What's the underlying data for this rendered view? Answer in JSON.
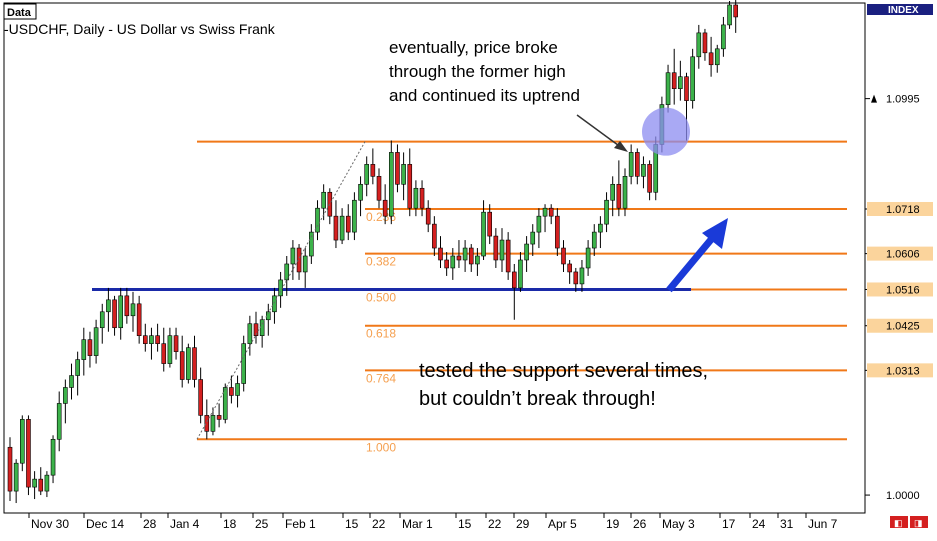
{
  "window": {
    "corner_label": "Data",
    "title": "-USDCHF, Daily - US Dollar vs Swiss Frank",
    "index_label": "INDEX"
  },
  "colors": {
    "bull_candle": "#3cb24a",
    "bear_candle": "#d42020",
    "wick": "#000000",
    "fib_line": "#f07818",
    "fib_text": "#f5a050",
    "support_line": "#1a2aa8",
    "arrow": "#1a3ad8",
    "circle": "#8c8cf0",
    "price_label_bg": "#fbd49c"
  },
  "annotations": {
    "breakout_line1": "eventually, price broke",
    "breakout_line2": "through the former high",
    "breakout_line3": "and continued its uptrend",
    "support_line1": "tested the support several times,",
    "support_line2": "but couldn’t break through!"
  },
  "chart_data": {
    "type": "candlestick",
    "title": "-USDCHF, Daily - US Dollar vs Swiss Frank",
    "ylim": [
      0.9955,
      1.1235
    ],
    "x_tick_labels": [
      "Nov 30",
      "Dec 14",
      "28",
      "Jan 4",
      "18",
      "25",
      "Feb 1",
      "15",
      "22",
      "Mar 1",
      "15",
      "22",
      "29",
      "Apr 5",
      "19",
      "26",
      "May 3",
      "17",
      "24",
      "31",
      "Jun 7"
    ],
    "y_labels": [
      {
        "value": 1.0995,
        "text": "1.0995",
        "highlight": false,
        "arrow": true
      },
      {
        "value": 1.0718,
        "text": "1.0718",
        "highlight": true
      },
      {
        "value": 1.0606,
        "text": "1.0606",
        "highlight": true
      },
      {
        "value": 1.0516,
        "text": "1.0516",
        "highlight": true
      },
      {
        "value": 1.0425,
        "text": "1.0425",
        "highlight": true
      },
      {
        "value": 1.0313,
        "text": "1.0313",
        "highlight": true
      },
      {
        "value": 1.0,
        "text": "1.0000",
        "highlight": false
      }
    ],
    "fibonacci": [
      {
        "level": "",
        "value": 1.0887
      },
      {
        "level": "0.236",
        "value": 1.0718
      },
      {
        "level": "0.382",
        "value": 1.0606
      },
      {
        "level": "0.500",
        "value": 1.0516
      },
      {
        "level": "0.618",
        "value": 1.0425
      },
      {
        "level": "0.764",
        "value": 1.0313
      },
      {
        "level": "1.000",
        "value": 1.014
      }
    ],
    "support_value": 1.0516,
    "candles": [
      {
        "o": 1.012,
        "h": 1.0145,
        "l": 0.9985,
        "c": 1.001
      },
      {
        "o": 1.001,
        "h": 1.009,
        "l": 0.998,
        "c": 1.008
      },
      {
        "o": 1.008,
        "h": 1.02,
        "l": 1.006,
        "c": 1.019
      },
      {
        "o": 1.019,
        "h": 1.02,
        "l": 1.0,
        "c": 1.002
      },
      {
        "o": 1.002,
        "h": 1.006,
        "l": 0.999,
        "c": 1.004
      },
      {
        "o": 1.004,
        "h": 1.007,
        "l": 1.0,
        "c": 1.001
      },
      {
        "o": 1.001,
        "h": 1.006,
        "l": 0.9995,
        "c": 1.005
      },
      {
        "o": 1.005,
        "h": 1.015,
        "l": 1.003,
        "c": 1.014
      },
      {
        "o": 1.014,
        "h": 1.026,
        "l": 1.011,
        "c": 1.023
      },
      {
        "o": 1.023,
        "h": 1.029,
        "l": 1.018,
        "c": 1.027
      },
      {
        "o": 1.027,
        "h": 1.033,
        "l": 1.024,
        "c": 1.03
      },
      {
        "o": 1.03,
        "h": 1.036,
        "l": 1.025,
        "c": 1.034
      },
      {
        "o": 1.034,
        "h": 1.042,
        "l": 1.03,
        "c": 1.039
      },
      {
        "o": 1.039,
        "h": 1.041,
        "l": 1.032,
        "c": 1.035
      },
      {
        "o": 1.035,
        "h": 1.044,
        "l": 1.033,
        "c": 1.042
      },
      {
        "o": 1.042,
        "h": 1.048,
        "l": 1.038,
        "c": 1.046
      },
      {
        "o": 1.046,
        "h": 1.052,
        "l": 1.041,
        "c": 1.049
      },
      {
        "o": 1.049,
        "h": 1.05,
        "l": 1.04,
        "c": 1.042
      },
      {
        "o": 1.042,
        "h": 1.052,
        "l": 1.039,
        "c": 1.05
      },
      {
        "o": 1.05,
        "h": 1.052,
        "l": 1.043,
        "c": 1.045
      },
      {
        "o": 1.045,
        "h": 1.051,
        "l": 1.041,
        "c": 1.048
      },
      {
        "o": 1.048,
        "h": 1.05,
        "l": 1.038,
        "c": 1.04
      },
      {
        "o": 1.04,
        "h": 1.043,
        "l": 1.036,
        "c": 1.038
      },
      {
        "o": 1.038,
        "h": 1.042,
        "l": 1.034,
        "c": 1.04
      },
      {
        "o": 1.04,
        "h": 1.043,
        "l": 1.036,
        "c": 1.038
      },
      {
        "o": 1.038,
        "h": 1.042,
        "l": 1.031,
        "c": 1.033
      },
      {
        "o": 1.033,
        "h": 1.042,
        "l": 1.032,
        "c": 1.04
      },
      {
        "o": 1.04,
        "h": 1.042,
        "l": 1.034,
        "c": 1.036
      },
      {
        "o": 1.036,
        "h": 1.04,
        "l": 1.027,
        "c": 1.029
      },
      {
        "o": 1.029,
        "h": 1.038,
        "l": 1.028,
        "c": 1.037
      },
      {
        "o": 1.037,
        "h": 1.04,
        "l": 1.027,
        "c": 1.029
      },
      {
        "o": 1.029,
        "h": 1.032,
        "l": 1.018,
        "c": 1.02
      },
      {
        "o": 1.02,
        "h": 1.024,
        "l": 1.014,
        "c": 1.016
      },
      {
        "o": 1.016,
        "h": 1.022,
        "l": 1.015,
        "c": 1.02
      },
      {
        "o": 1.02,
        "h": 1.023,
        "l": 1.017,
        "c": 1.019
      },
      {
        "o": 1.019,
        "h": 1.028,
        "l": 1.018,
        "c": 1.027
      },
      {
        "o": 1.027,
        "h": 1.03,
        "l": 1.023,
        "c": 1.025
      },
      {
        "o": 1.025,
        "h": 1.03,
        "l": 1.022,
        "c": 1.028
      },
      {
        "o": 1.028,
        "h": 1.04,
        "l": 1.026,
        "c": 1.038
      },
      {
        "o": 1.038,
        "h": 1.045,
        "l": 1.035,
        "c": 1.043
      },
      {
        "o": 1.043,
        "h": 1.046,
        "l": 1.038,
        "c": 1.04
      },
      {
        "o": 1.04,
        "h": 1.045,
        "l": 1.037,
        "c": 1.044
      },
      {
        "o": 1.044,
        "h": 1.048,
        "l": 1.04,
        "c": 1.046
      },
      {
        "o": 1.046,
        "h": 1.052,
        "l": 1.043,
        "c": 1.05
      },
      {
        "o": 1.05,
        "h": 1.056,
        "l": 1.047,
        "c": 1.054
      },
      {
        "o": 1.054,
        "h": 1.06,
        "l": 1.05,
        "c": 1.058
      },
      {
        "o": 1.058,
        "h": 1.064,
        "l": 1.054,
        "c": 1.062
      },
      {
        "o": 1.062,
        "h": 1.063,
        "l": 1.054,
        "c": 1.056
      },
      {
        "o": 1.056,
        "h": 1.062,
        "l": 1.052,
        "c": 1.06
      },
      {
        "o": 1.06,
        "h": 1.068,
        "l": 1.058,
        "c": 1.066
      },
      {
        "o": 1.066,
        "h": 1.074,
        "l": 1.064,
        "c": 1.072
      },
      {
        "o": 1.072,
        "h": 1.078,
        "l": 1.069,
        "c": 1.076
      },
      {
        "o": 1.076,
        "h": 1.077,
        "l": 1.068,
        "c": 1.07
      },
      {
        "o": 1.07,
        "h": 1.074,
        "l": 1.062,
        "c": 1.064
      },
      {
        "o": 1.064,
        "h": 1.072,
        "l": 1.063,
        "c": 1.07
      },
      {
        "o": 1.07,
        "h": 1.073,
        "l": 1.064,
        "c": 1.066
      },
      {
        "o": 1.066,
        "h": 1.076,
        "l": 1.064,
        "c": 1.074
      },
      {
        "o": 1.074,
        "h": 1.08,
        "l": 1.07,
        "c": 1.078
      },
      {
        "o": 1.078,
        "h": 1.085,
        "l": 1.075,
        "c": 1.083
      },
      {
        "o": 1.083,
        "h": 1.087,
        "l": 1.078,
        "c": 1.08
      },
      {
        "o": 1.08,
        "h": 1.082,
        "l": 1.072,
        "c": 1.074
      },
      {
        "o": 1.074,
        "h": 1.078,
        "l": 1.068,
        "c": 1.07
      },
      {
        "o": 1.07,
        "h": 1.089,
        "l": 1.068,
        "c": 1.086
      },
      {
        "o": 1.086,
        "h": 1.088,
        "l": 1.076,
        "c": 1.078
      },
      {
        "o": 1.078,
        "h": 1.086,
        "l": 1.074,
        "c": 1.083
      },
      {
        "o": 1.083,
        "h": 1.087,
        "l": 1.07,
        "c": 1.072
      },
      {
        "o": 1.072,
        "h": 1.079,
        "l": 1.07,
        "c": 1.077
      },
      {
        "o": 1.077,
        "h": 1.079,
        "l": 1.07,
        "c": 1.072
      },
      {
        "o": 1.072,
        "h": 1.074,
        "l": 1.066,
        "c": 1.068
      },
      {
        "o": 1.068,
        "h": 1.07,
        "l": 1.06,
        "c": 1.062
      },
      {
        "o": 1.062,
        "h": 1.065,
        "l": 1.057,
        "c": 1.059
      },
      {
        "o": 1.059,
        "h": 1.061,
        "l": 1.055,
        "c": 1.057
      },
      {
        "o": 1.057,
        "h": 1.062,
        "l": 1.054,
        "c": 1.06
      },
      {
        "o": 1.06,
        "h": 1.064,
        "l": 1.057,
        "c": 1.059
      },
      {
        "o": 1.059,
        "h": 1.064,
        "l": 1.056,
        "c": 1.062
      },
      {
        "o": 1.062,
        "h": 1.063,
        "l": 1.056,
        "c": 1.058
      },
      {
        "o": 1.058,
        "h": 1.062,
        "l": 1.055,
        "c": 1.06
      },
      {
        "o": 1.06,
        "h": 1.074,
        "l": 1.059,
        "c": 1.071
      },
      {
        "o": 1.071,
        "h": 1.073,
        "l": 1.063,
        "c": 1.065
      },
      {
        "o": 1.065,
        "h": 1.067,
        "l": 1.057,
        "c": 1.059
      },
      {
        "o": 1.059,
        "h": 1.067,
        "l": 1.056,
        "c": 1.064
      },
      {
        "o": 1.064,
        "h": 1.066,
        "l": 1.054,
        "c": 1.056
      },
      {
        "o": 1.056,
        "h": 1.058,
        "l": 1.044,
        "c": 1.052
      },
      {
        "o": 1.052,
        "h": 1.061,
        "l": 1.051,
        "c": 1.059
      },
      {
        "o": 1.059,
        "h": 1.065,
        "l": 1.056,
        "c": 1.063
      },
      {
        "o": 1.063,
        "h": 1.068,
        "l": 1.06,
        "c": 1.066
      },
      {
        "o": 1.066,
        "h": 1.072,
        "l": 1.062,
        "c": 1.07
      },
      {
        "o": 1.07,
        "h": 1.073,
        "l": 1.066,
        "c": 1.072
      },
      {
        "o": 1.072,
        "h": 1.073,
        "l": 1.068,
        "c": 1.07
      },
      {
        "o": 1.07,
        "h": 1.072,
        "l": 1.06,
        "c": 1.062
      },
      {
        "o": 1.062,
        "h": 1.064,
        "l": 1.056,
        "c": 1.058
      },
      {
        "o": 1.058,
        "h": 1.059,
        "l": 1.053,
        "c": 1.056
      },
      {
        "o": 1.056,
        "h": 1.057,
        "l": 1.051,
        "c": 1.053
      },
      {
        "o": 1.053,
        "h": 1.059,
        "l": 1.051,
        "c": 1.057
      },
      {
        "o": 1.057,
        "h": 1.064,
        "l": 1.055,
        "c": 1.062
      },
      {
        "o": 1.062,
        "h": 1.068,
        "l": 1.06,
        "c": 1.066
      },
      {
        "o": 1.066,
        "h": 1.07,
        "l": 1.062,
        "c": 1.068
      },
      {
        "o": 1.068,
        "h": 1.076,
        "l": 1.066,
        "c": 1.074
      },
      {
        "o": 1.074,
        "h": 1.08,
        "l": 1.07,
        "c": 1.078
      },
      {
        "o": 1.078,
        "h": 1.084,
        "l": 1.07,
        "c": 1.072
      },
      {
        "o": 1.072,
        "h": 1.082,
        "l": 1.07,
        "c": 1.08
      },
      {
        "o": 1.08,
        "h": 1.088,
        "l": 1.078,
        "c": 1.086
      },
      {
        "o": 1.086,
        "h": 1.087,
        "l": 1.078,
        "c": 1.08
      },
      {
        "o": 1.08,
        "h": 1.085,
        "l": 1.077,
        "c": 1.083
      },
      {
        "o": 1.083,
        "h": 1.084,
        "l": 1.074,
        "c": 1.076
      },
      {
        "o": 1.076,
        "h": 1.09,
        "l": 1.074,
        "c": 1.088
      },
      {
        "o": 1.088,
        "h": 1.1,
        "l": 1.086,
        "c": 1.098
      },
      {
        "o": 1.098,
        "h": 1.108,
        "l": 1.096,
        "c": 1.106
      },
      {
        "o": 1.106,
        "h": 1.112,
        "l": 1.098,
        "c": 1.102
      },
      {
        "o": 1.102,
        "h": 1.109,
        "l": 1.099,
        "c": 1.105
      },
      {
        "o": 1.105,
        "h": 1.106,
        "l": 1.089,
        "c": 1.099
      },
      {
        "o": 1.099,
        "h": 1.112,
        "l": 1.097,
        "c": 1.11
      },
      {
        "o": 1.11,
        "h": 1.118,
        "l": 1.107,
        "c": 1.116
      },
      {
        "o": 1.116,
        "h": 1.117,
        "l": 1.109,
        "c": 1.111
      },
      {
        "o": 1.111,
        "h": 1.115,
        "l": 1.105,
        "c": 1.108
      },
      {
        "o": 1.108,
        "h": 1.113,
        "l": 1.106,
        "c": 1.112
      },
      {
        "o": 1.112,
        "h": 1.12,
        "l": 1.11,
        "c": 1.118
      },
      {
        "o": 1.118,
        "h": 1.124,
        "l": 1.117,
        "c": 1.123
      },
      {
        "o": 1.123,
        "h": 1.125,
        "l": 1.116,
        "c": 1.12
      }
    ]
  }
}
